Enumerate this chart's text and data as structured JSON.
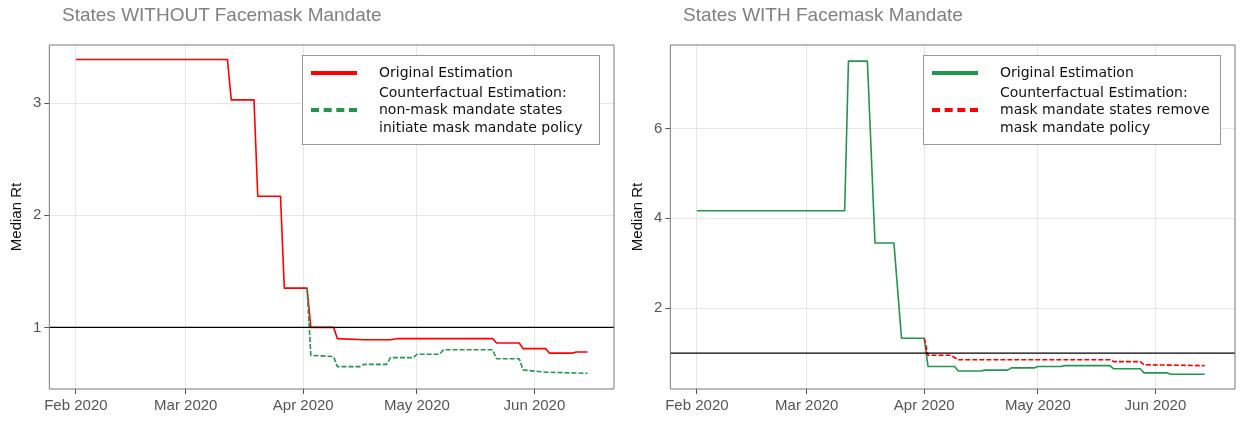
{
  "chart_data": [
    {
      "type": "line",
      "title": "States WITHOUT Facemask Mandate",
      "ylabel": "Median Rt",
      "xlim": [
        "2020-01-25",
        "2020-06-22"
      ],
      "xticks": [
        {
          "value": "2020-02-01",
          "label": "Feb 2020"
        },
        {
          "value": "2020-03-01",
          "label": "Mar 2020"
        },
        {
          "value": "2020-04-01",
          "label": "Apr 2020"
        },
        {
          "value": "2020-05-01",
          "label": "May 2020"
        },
        {
          "value": "2020-06-01",
          "label": "Jun 2020"
        }
      ],
      "ylim": [
        0.45,
        3.52
      ],
      "yticks": [
        1,
        2,
        3
      ],
      "grid": true,
      "legend": "top right",
      "ref_lines": [
        {
          "axis": "y",
          "value": 1,
          "color": "#000000"
        }
      ],
      "series": [
        {
          "name": "Original Estimation",
          "color": "#ff0000",
          "line_style": "solid",
          "x": [
            "2020-02-01",
            "2020-03-12",
            "2020-03-13",
            "2020-03-19",
            "2020-03-20",
            "2020-03-26",
            "2020-03-27",
            "2020-04-02",
            "2020-04-03",
            "2020-04-09",
            "2020-04-10",
            "2020-04-17",
            "2020-04-24",
            "2020-04-26",
            "2020-05-21",
            "2020-05-22",
            "2020-05-28",
            "2020-05-29",
            "2020-06-04",
            "2020-06-05",
            "2020-06-11",
            "2020-06-12",
            "2020-06-15"
          ],
          "values": [
            3.39,
            3.39,
            3.03,
            3.03,
            2.17,
            2.17,
            1.35,
            1.35,
            1.0,
            1.0,
            0.9,
            0.89,
            0.89,
            0.9,
            0.9,
            0.86,
            0.86,
            0.81,
            0.81,
            0.77,
            0.77,
            0.78,
            0.78
          ]
        },
        {
          "name": "Counterfactual Estimation: non-mask mandate states initiate mask mandate policy",
          "color": "#22964f",
          "line_style": "dashed",
          "x": [
            "2020-04-02",
            "2020-04-03",
            "2020-04-09",
            "2020-04-10",
            "2020-04-16",
            "2020-04-17",
            "2020-04-23",
            "2020-04-24",
            "2020-04-30",
            "2020-05-01",
            "2020-05-07",
            "2020-05-08",
            "2020-05-21",
            "2020-05-22",
            "2020-05-28",
            "2020-05-29",
            "2020-06-04",
            "2020-06-15"
          ],
          "values": [
            1.35,
            0.75,
            0.74,
            0.65,
            0.65,
            0.67,
            0.67,
            0.73,
            0.73,
            0.76,
            0.76,
            0.8,
            0.8,
            0.72,
            0.72,
            0.62,
            0.6,
            0.59
          ]
        }
      ]
    },
    {
      "type": "line",
      "title": "States WITH Facemask Mandate",
      "ylabel": "Median Rt",
      "xlim": [
        "2020-01-25",
        "2020-06-22"
      ],
      "xticks": [
        {
          "value": "2020-02-01",
          "label": "Feb 2020"
        },
        {
          "value": "2020-03-01",
          "label": "Mar 2020"
        },
        {
          "value": "2020-04-01",
          "label": "Apr 2020"
        },
        {
          "value": "2020-05-01",
          "label": "May 2020"
        },
        {
          "value": "2020-06-01",
          "label": "Jun 2020"
        }
      ],
      "ylim": [
        0.2,
        7.86
      ],
      "yticks": [
        2,
        4,
        6
      ],
      "grid": true,
      "legend": "top right",
      "ref_lines": [
        {
          "axis": "y",
          "value": 1,
          "color": "#000000"
        }
      ],
      "series": [
        {
          "name": "Original Estimation",
          "color": "#22964f",
          "line_style": "solid",
          "x": [
            "2020-02-01",
            "2020-03-11",
            "2020-03-12",
            "2020-03-17",
            "2020-03-19",
            "2020-03-24",
            "2020-03-26",
            "2020-04-01",
            "2020-04-02",
            "2020-04-09",
            "2020-04-10",
            "2020-04-16",
            "2020-04-17",
            "2020-04-23",
            "2020-04-24",
            "2020-04-30",
            "2020-05-01",
            "2020-05-07",
            "2020-05-08",
            "2020-05-20",
            "2020-05-21",
            "2020-05-28",
            "2020-05-29",
            "2020-06-04",
            "2020-06-05",
            "2020-06-14"
          ],
          "values": [
            4.17,
            4.17,
            7.5,
            7.5,
            3.45,
            3.45,
            1.33,
            1.33,
            0.7,
            0.7,
            0.6,
            0.6,
            0.62,
            0.62,
            0.67,
            0.67,
            0.7,
            0.7,
            0.72,
            0.72,
            0.65,
            0.65,
            0.56,
            0.56,
            0.53,
            0.53
          ]
        },
        {
          "name": "Counterfactual Estimation: mask mandate states remove mask mandate policy",
          "color": "#ff0000",
          "line_style": "dashed",
          "x": [
            "2020-04-01",
            "2020-04-02",
            "2020-04-08",
            "2020-04-10",
            "2020-05-20",
            "2020-05-21",
            "2020-05-28",
            "2020-05-29",
            "2020-06-14"
          ],
          "values": [
            1.33,
            0.95,
            0.95,
            0.85,
            0.85,
            0.81,
            0.81,
            0.74,
            0.72
          ]
        }
      ]
    }
  ]
}
